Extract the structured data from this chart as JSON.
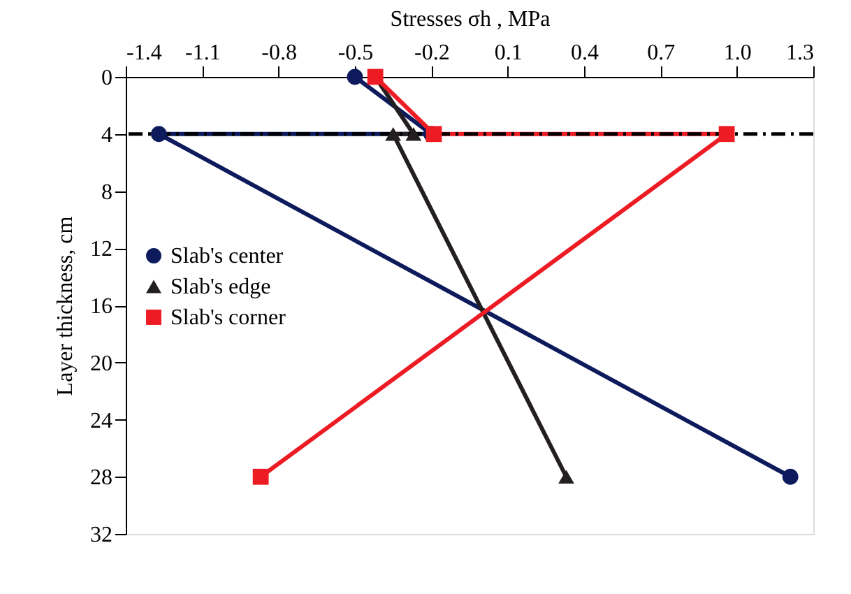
{
  "chart_data": {
    "type": "line",
    "xlabel": "Stresses σh , MPa",
    "ylabel": "Layer thickness, cm",
    "xlim": [
      -1.4,
      1.3
    ],
    "xticks": [
      -1.4,
      -1.1,
      -0.8,
      -0.5,
      -0.2,
      0.1,
      0.4,
      0.7,
      {
        "value": 1.0,
        "label": "1.0"
      },
      1.3
    ],
    "ylim": [
      32,
      0
    ],
    "yticks": [
      0,
      4,
      8,
      12,
      16,
      20,
      24,
      28,
      32
    ],
    "grid": false,
    "legend": "left",
    "series": [
      {
        "name": "Slab's center",
        "color": "#0d1a5c",
        "marker": "circle",
        "x": [
          -0.5,
          -0.2,
          -1.27,
          1.21
        ],
        "values": [
          0,
          4,
          4,
          28
        ]
      },
      {
        "name": "Slab's edge",
        "color": "#231f20",
        "marker": "triangle",
        "x": [
          -0.42,
          -0.27,
          -0.35,
          0.33
        ],
        "values": [
          0,
          4,
          4,
          28
        ]
      },
      {
        "name": "Slab's corner",
        "color": "#ed1c24",
        "marker": "square",
        "x": [
          -0.42,
          -0.19,
          0.96,
          -0.87
        ],
        "values": [
          0,
          4,
          4,
          28
        ]
      }
    ],
    "ref_lines": [
      {
        "axis": "y",
        "value": 4,
        "label": null,
        "color": "#000000",
        "line_style": "dashed"
      }
    ]
  }
}
